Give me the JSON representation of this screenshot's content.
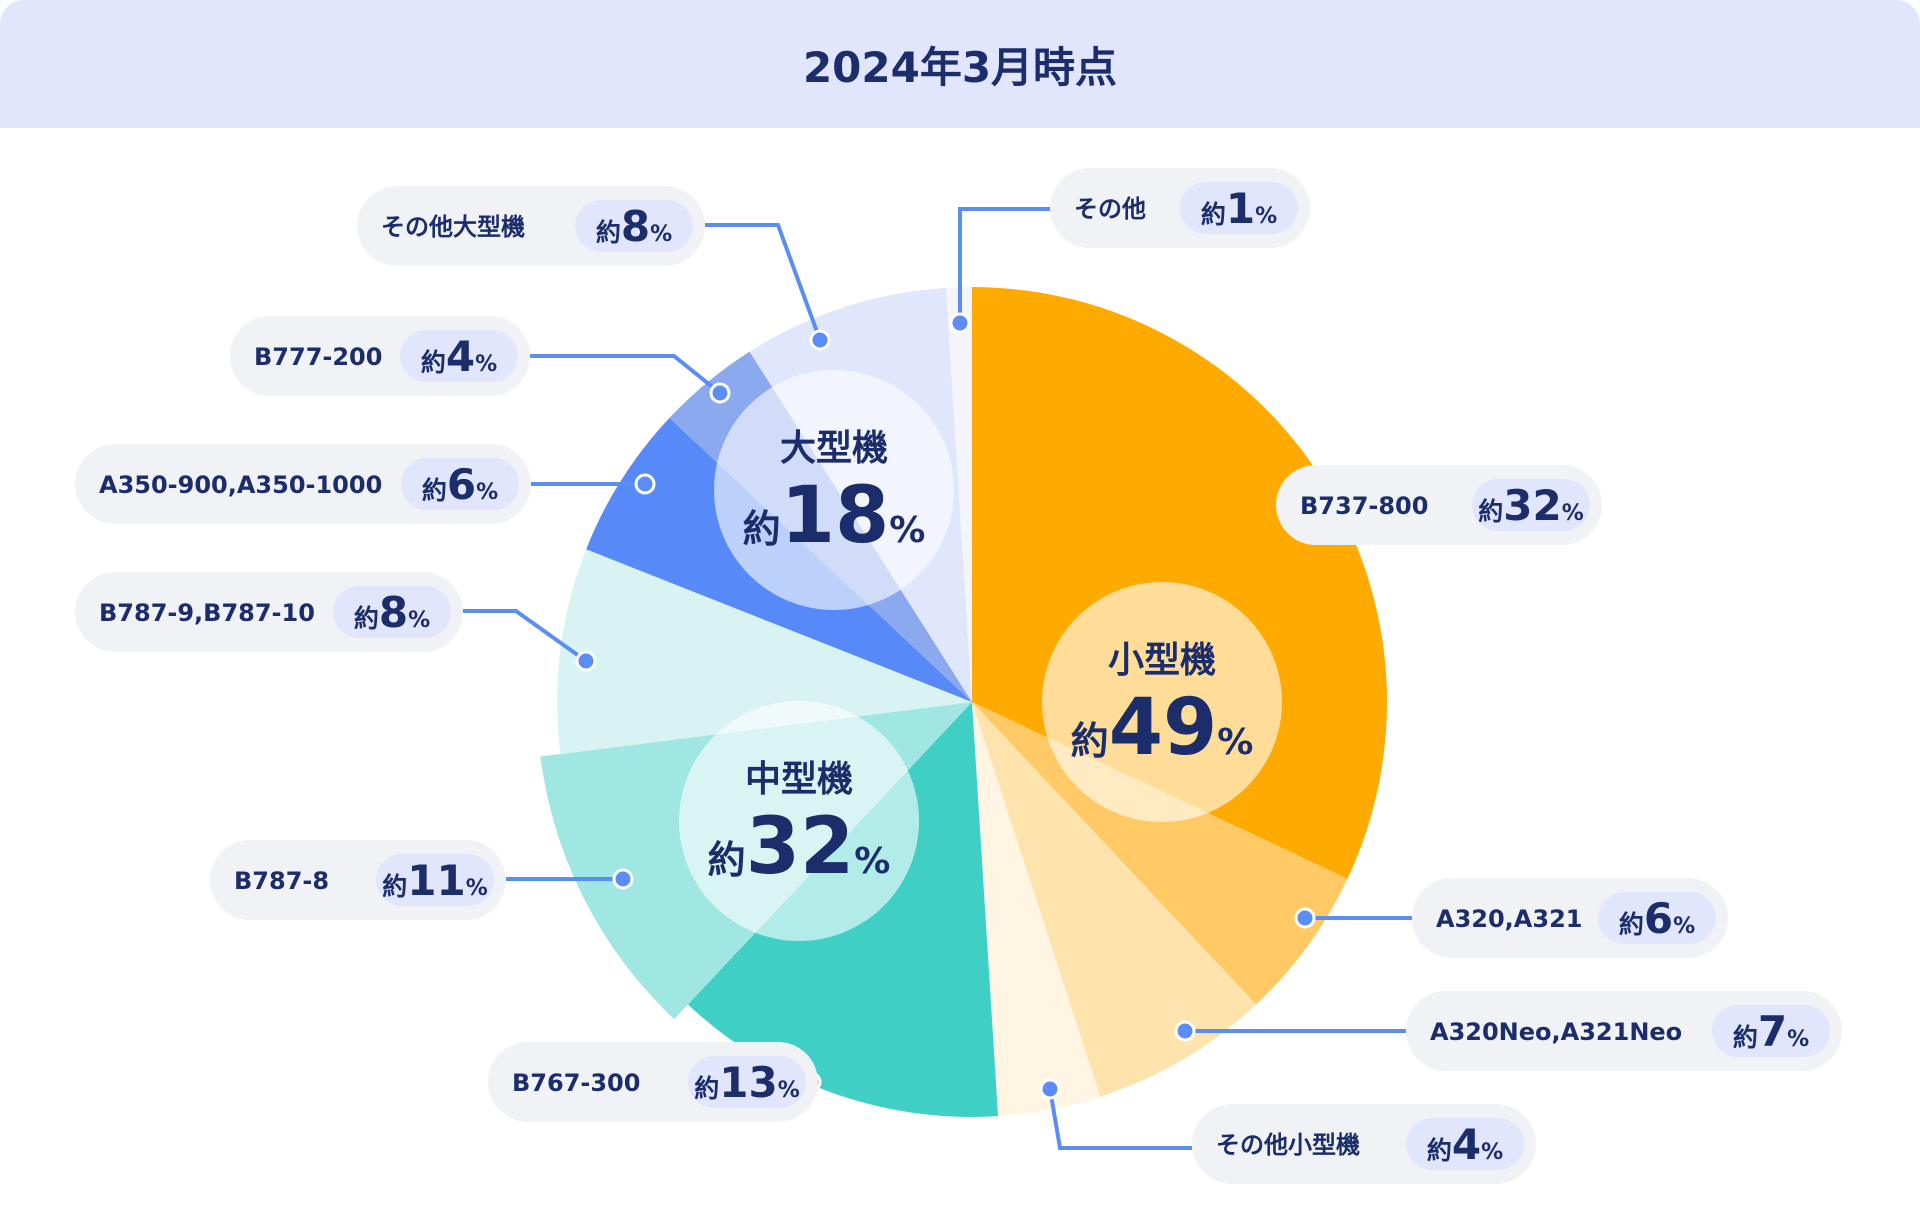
{
  "title": "2024年3月時点",
  "chart_data": {
    "type": "pie",
    "title": "2024年3月時点",
    "slices": [
      {
        "name": "B737-800",
        "value": 32,
        "label": "約32%",
        "color": "#ffaa00",
        "group": "small"
      },
      {
        "name": "A320,A321",
        "value": 6,
        "label": "約6%",
        "color": "#ffca66",
        "group": "small"
      },
      {
        "name": "A320Neo,A321Neo",
        "value": 7,
        "label": "約7%",
        "color": "#ffe3ac",
        "group": "small"
      },
      {
        "name": "その他小型機",
        "value": 4,
        "label": "約4%",
        "color": "#fff5e2",
        "group": "small"
      },
      {
        "name": "B767-300",
        "value": 13,
        "label": "約13%",
        "color": "#40cfc5",
        "group": "medium"
      },
      {
        "name": "B787-8",
        "value": 11,
        "label": "約11%",
        "color": "#a0e6e2",
        "group": "medium"
      },
      {
        "name": "B787-9,B787-10",
        "value": 8,
        "label": "約8%",
        "color": "#d9f3f3",
        "group": "medium"
      },
      {
        "name": "A350-900,A350-1000",
        "value": 6,
        "label": "約6%",
        "color": "#578af8",
        "group": "large"
      },
      {
        "name": "B777-200",
        "value": 4,
        "label": "約4%",
        "color": "#8aa9ee",
        "group": "large"
      },
      {
        "name": "その他大型機",
        "value": 8,
        "label": "約8%",
        "color": "#e0e6fc",
        "group": "large"
      },
      {
        "name": "その他",
        "value": 1,
        "label": "約1%",
        "color": "#f3f5fb",
        "group": "other"
      }
    ],
    "groups": [
      {
        "key": "small",
        "name": "小型機",
        "value": 49,
        "label": "約49%"
      },
      {
        "key": "medium",
        "name": "中型機",
        "value": 32,
        "label": "約32%"
      },
      {
        "key": "large",
        "name": "大型機",
        "value": 18,
        "label": "約18%"
      }
    ],
    "prefix": "約",
    "unit": "%",
    "accent_color": "#5b8df5",
    "text_color": "#1b2d6b",
    "header_color": "#e1e6fc"
  }
}
